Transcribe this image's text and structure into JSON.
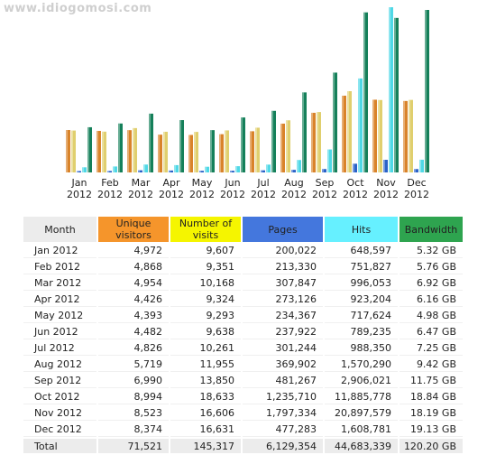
{
  "watermark": "www.idiogomosi.com",
  "colors": {
    "unique_visitors": "#f5952b",
    "visits": "#f5f500",
    "pages": "#4477dd",
    "hits": "#66f0ff",
    "bandwidth": "#2ea44f",
    "month_header": "#ececec",
    "total_row": "#ececec"
  },
  "table": {
    "headers": {
      "month": "Month",
      "unique_visitors": "Unique visitors",
      "visits": "Number of visits",
      "pages": "Pages",
      "hits": "Hits",
      "bandwidth": "Bandwidth"
    },
    "rows": [
      {
        "month": "Jan 2012",
        "unique": "4,972",
        "visits": "9,607",
        "pages": "200,022",
        "hits": "648,597",
        "bandwidth": "5.32 GB"
      },
      {
        "month": "Feb 2012",
        "unique": "4,868",
        "visits": "9,351",
        "pages": "213,330",
        "hits": "751,827",
        "bandwidth": "5.76 GB"
      },
      {
        "month": "Mar 2012",
        "unique": "4,954",
        "visits": "10,168",
        "pages": "307,847",
        "hits": "996,053",
        "bandwidth": "6.92 GB"
      },
      {
        "month": "Apr 2012",
        "unique": "4,426",
        "visits": "9,324",
        "pages": "273,126",
        "hits": "923,204",
        "bandwidth": "6.16 GB"
      },
      {
        "month": "May 2012",
        "unique": "4,393",
        "visits": "9,293",
        "pages": "234,367",
        "hits": "717,624",
        "bandwidth": "4.98 GB"
      },
      {
        "month": "Jun 2012",
        "unique": "4,482",
        "visits": "9,638",
        "pages": "237,922",
        "hits": "789,235",
        "bandwidth": "6.47 GB"
      },
      {
        "month": "Jul 2012",
        "unique": "4,826",
        "visits": "10,261",
        "pages": "301,244",
        "hits": "988,350",
        "bandwidth": "7.25 GB"
      },
      {
        "month": "Aug 2012",
        "unique": "5,719",
        "visits": "11,955",
        "pages": "369,902",
        "hits": "1,570,290",
        "bandwidth": "9.42 GB"
      },
      {
        "month": "Sep 2012",
        "unique": "6,990",
        "visits": "13,850",
        "pages": "481,267",
        "hits": "2,906,021",
        "bandwidth": "11.75 GB"
      },
      {
        "month": "Oct 2012",
        "unique": "8,994",
        "visits": "18,633",
        "pages": "1,235,710",
        "hits": "11,885,778",
        "bandwidth": "18.84 GB"
      },
      {
        "month": "Nov 2012",
        "unique": "8,523",
        "visits": "16,606",
        "pages": "1,797,334",
        "hits": "20,897,579",
        "bandwidth": "18.19 GB"
      },
      {
        "month": "Dec 2012",
        "unique": "8,374",
        "visits": "16,631",
        "pages": "477,283",
        "hits": "1,608,781",
        "bandwidth": "19.13 GB"
      }
    ],
    "total": {
      "month": "Total",
      "unique": "71,521",
      "visits": "145,317",
      "pages": "6,129,354",
      "hits": "44,683,339",
      "bandwidth": "120.20 GB"
    }
  },
  "chart_data": {
    "type": "bar",
    "categories": [
      "Jan 2012",
      "Feb 2012",
      "Mar 2012",
      "Apr 2012",
      "May 2012",
      "Jun 2012",
      "Jul 2012",
      "Aug 2012",
      "Sep 2012",
      "Oct 2012",
      "Nov 2012",
      "Dec 2012"
    ],
    "series": [
      {
        "name": "Unique visitors",
        "color": "#d9832a",
        "values": [
          4972,
          4868,
          4954,
          4426,
          4393,
          4482,
          4826,
          5719,
          6990,
          8994,
          8523,
          8374
        ]
      },
      {
        "name": "Number of visits",
        "color": "#e0cf6e",
        "values": [
          9607,
          9351,
          10168,
          9324,
          9293,
          9638,
          10261,
          11955,
          13850,
          18633,
          16606,
          16631
        ]
      },
      {
        "name": "Pages",
        "color": "#2a62c8",
        "values": [
          200022,
          213330,
          307847,
          273126,
          234367,
          237922,
          301244,
          369902,
          481267,
          1235710,
          1797334,
          477283
        ]
      },
      {
        "name": "Hits",
        "color": "#4fd8e6",
        "values": [
          648597,
          751827,
          996053,
          923204,
          717624,
          789235,
          988350,
          1570290,
          2906021,
          11885778,
          20897579,
          1608781
        ]
      },
      {
        "name": "Bandwidth",
        "color": "#15805a",
        "values": [
          5.32,
          5.76,
          6.92,
          6.16,
          4.98,
          6.47,
          7.25,
          9.42,
          11.75,
          18.84,
          18.19,
          19.13
        ],
        "unit": "GB"
      }
    ],
    "scale_note": "each pair of series drawn on its own scale; Hits bar for Nov clipped at top"
  }
}
